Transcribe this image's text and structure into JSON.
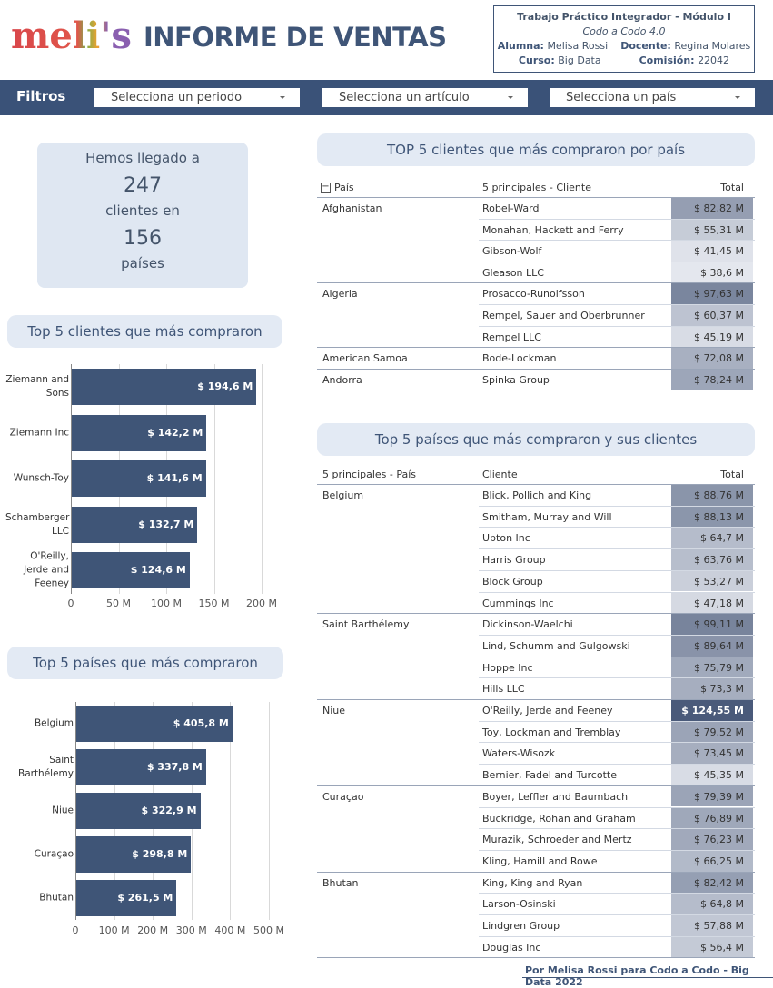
{
  "header": {
    "logo": "meli's",
    "title": "INFORME DE VENTAS"
  },
  "info": {
    "title": "Trabajo Práctico Integrador - Módulo I",
    "subtitle": "Codo a Codo 4.0",
    "student_label": "Alumna:",
    "student": "Melisa Rossi",
    "teacher_label": "Docente:",
    "teacher": "Regina Molares",
    "course_label": "Curso:",
    "course": "Big Data",
    "commission_label": "Comisión:",
    "commission": "22042"
  },
  "filters": {
    "label": "Filtros",
    "options": [
      "Selecciona un periodo",
      "Selecciona un artículo",
      "Selecciona un país"
    ]
  },
  "summary": {
    "line1": "Hemos llegado a",
    "clients": 247,
    "line2": "clientes en",
    "countries": 156,
    "line3": "países"
  },
  "chart_data": [
    {
      "type": "bar",
      "orientation": "horizontal",
      "title": "Top 5 clientes que más compraron",
      "color": "#3f5577",
      "grid": true,
      "categories": [
        "Ziemann and Sons",
        "Ziemann Inc",
        "Wunsch-Toy",
        "Schamberger LLC",
        "O'Reilly, Jerde and Feeney"
      ],
      "values": [
        194.6,
        142.2,
        141.6,
        132.7,
        124.6
      ],
      "value_labels": [
        "$ 194,6 M",
        "$ 142,2 M",
        "$ 141,6 M",
        "$ 132,7 M",
        "$ 124,6 M"
      ],
      "xlim": [
        0,
        210
      ],
      "xticks": [
        0,
        {
          "value": 50,
          "label": "50 M"
        },
        {
          "value": 100,
          "label": "100 M"
        },
        {
          "value": 150,
          "label": "150 M"
        },
        {
          "value": 200,
          "label": "200 M"
        }
      ]
    },
    {
      "type": "bar",
      "orientation": "horizontal",
      "title": "Top 5 países que más compraron",
      "color": "#3f5577",
      "grid": true,
      "categories": [
        "Belgium",
        "Saint Barthélemy",
        "Niue",
        "Curaçao",
        "Bhutan"
      ],
      "values": [
        405.8,
        337.8,
        322.9,
        298.8,
        261.5
      ],
      "value_labels": [
        "$ 405,8 M",
        "$ 337,8 M",
        "$ 322,9 M",
        "$ 298,8 M",
        "$ 261,5 M"
      ],
      "xlim": [
        0,
        500
      ],
      "xticks": [
        0,
        {
          "value": 100,
          "label": "100 M"
        },
        {
          "value": 200,
          "label": "200 M"
        },
        {
          "value": 300,
          "label": "300 M"
        },
        {
          "value": 400,
          "label": "400 M"
        },
        {
          "value": 500,
          "label": "500 M"
        }
      ]
    }
  ],
  "tables": [
    {
      "title": "TOP 5 clientes que más compraron por país",
      "headers": [
        "País",
        "5 principales - Cliente",
        "Total"
      ],
      "groups": [
        {
          "country": "Afghanistan",
          "rows": [
            {
              "client": "Robel-Ward",
              "value": 82.82,
              "value_label": "$ 82,82 M"
            },
            {
              "client": "Monahan, Hackett and Ferry",
              "value": 55.31,
              "value_label": "$ 55,31 M"
            },
            {
              "client": "Gibson-Wolf",
              "value": 41.45,
              "value_label": "$ 41,45 M"
            },
            {
              "client": "Gleason LLC",
              "value": 38.6,
              "value_label": "$ 38,6 M"
            }
          ]
        },
        {
          "country": "Algeria",
          "rows": [
            {
              "client": "Prosacco-Runolfsson",
              "value": 97.63,
              "value_label": "$ 97,63 M"
            },
            {
              "client": "Rempel, Sauer and Oberbrunner",
              "value": 60.37,
              "value_label": "$ 60,37 M"
            },
            {
              "client": "Rempel LLC",
              "value": 45.19,
              "value_label": "$ 45,19 M"
            }
          ]
        },
        {
          "country": "American Samoa",
          "rows": [
            {
              "client": "Bode-Lockman",
              "value": 72.08,
              "value_label": "$ 72,08 M"
            }
          ]
        },
        {
          "country": "Andorra",
          "rows": [
            {
              "client": "Spinka Group",
              "value": 78.24,
              "value_label": "$ 78,24 M"
            }
          ]
        }
      ]
    },
    {
      "title": "Top 5 países que más compraron y sus clientes",
      "headers": [
        "5 principales - País",
        "Cliente",
        "Total"
      ],
      "groups": [
        {
          "country": "Belgium",
          "rows": [
            {
              "client": "Blick, Pollich and King",
              "value": 88.76,
              "value_label": "$ 88,76 M"
            },
            {
              "client": "Smitham, Murray and Will",
              "value": 88.13,
              "value_label": "$ 88,13 M"
            },
            {
              "client": "Upton Inc",
              "value": 64.7,
              "value_label": "$ 64,7 M"
            },
            {
              "client": "Harris Group",
              "value": 63.76,
              "value_label": "$ 63,76 M"
            },
            {
              "client": "Block Group",
              "value": 53.27,
              "value_label": "$ 53,27 M"
            },
            {
              "client": "Cummings Inc",
              "value": 47.18,
              "value_label": "$ 47,18 M"
            }
          ]
        },
        {
          "country": "Saint Barthélemy",
          "rows": [
            {
              "client": "Dickinson-Waelchi",
              "value": 99.11,
              "value_label": "$ 99,11 M"
            },
            {
              "client": "Lind, Schumm and Gulgowski",
              "value": 89.64,
              "value_label": "$ 89,64 M"
            },
            {
              "client": "Hoppe Inc",
              "value": 75.79,
              "value_label": "$ 75,79 M"
            },
            {
              "client": "Hills LLC",
              "value": 73.3,
              "value_label": "$ 73,3 M"
            }
          ]
        },
        {
          "country": "Niue",
          "rows": [
            {
              "client": "O'Reilly, Jerde and Feeney",
              "value": 124.55,
              "value_label": "$ 124,55 M"
            },
            {
              "client": "Toy, Lockman and Tremblay",
              "value": 79.52,
              "value_label": "$ 79,52 M"
            },
            {
              "client": "Waters-Wisozk",
              "value": 73.45,
              "value_label": "$ 73,45 M"
            },
            {
              "client": "Bernier, Fadel and Turcotte",
              "value": 45.35,
              "value_label": "$ 45,35 M"
            }
          ]
        },
        {
          "country": "Curaçao",
          "rows": [
            {
              "client": "Boyer, Leffler and Baumbach",
              "value": 79.39,
              "value_label": "$ 79,39 M"
            },
            {
              "client": "Buckridge, Rohan and Graham",
              "value": 76.89,
              "value_label": "$ 76,89 M"
            },
            {
              "client": "Murazik, Schroeder and Mertz",
              "value": 76.23,
              "value_label": "$ 76,23 M"
            },
            {
              "client": "Kling, Hamill and Rowe",
              "value": 66.25,
              "value_label": "$ 66,25 M"
            }
          ]
        },
        {
          "country": "Bhutan",
          "rows": [
            {
              "client": "King, King and Ryan",
              "value": 82.42,
              "value_label": "$ 82,42 M"
            },
            {
              "client": "Larson-Osinski",
              "value": 64.8,
              "value_label": "$ 64,8 M"
            },
            {
              "client": "Lindgren Group",
              "value": 57.88,
              "value_label": "$ 57,88 M"
            },
            {
              "client": "Douglas Inc",
              "value": 56.4,
              "value_label": "$ 56,4 M"
            }
          ]
        }
      ]
    }
  ],
  "footer": "Por Melisa Rossi para Codo a Codo - Big Data 2022"
}
